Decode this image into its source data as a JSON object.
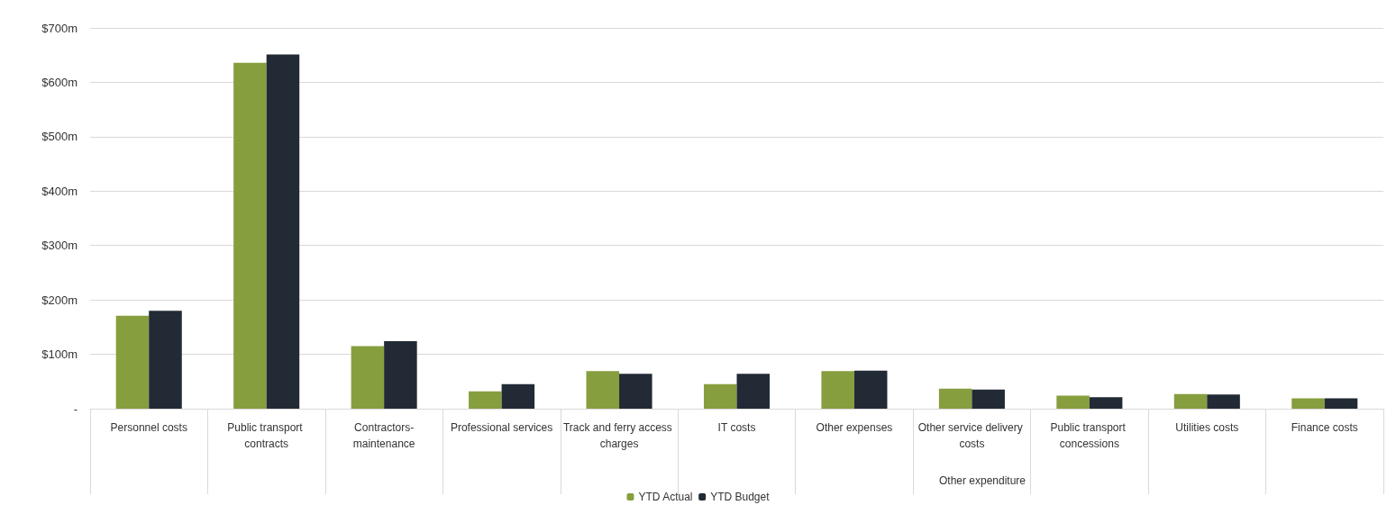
{
  "chart_data": {
    "type": "bar",
    "categories": [
      "Personnel costs",
      "Public transport contracts",
      "Contractors-maintenance",
      "Professional services",
      "Track and ferry access charges",
      "IT costs",
      "Other expenses",
      "Other service delivery costs",
      "Public transport concessions",
      "Utilities costs",
      "Finance costs"
    ],
    "series": [
      {
        "name": "YTD Actual",
        "color": "#879e3e",
        "values": [
          171,
          636,
          115,
          32,
          69,
          45,
          69,
          37,
          24,
          27,
          19
        ]
      },
      {
        "name": "YTD Budget",
        "color": "#222a35",
        "values": [
          180,
          651,
          124,
          45,
          64,
          64,
          70,
          35,
          21,
          26,
          19
        ]
      }
    ],
    "ylim": [
      0,
      700
    ],
    "yticks": [
      {
        "value": 0,
        "label": "-"
      },
      {
        "value": 100,
        "label": "$100m"
      },
      {
        "value": 200,
        "label": "$200m"
      },
      {
        "value": 300,
        "label": "$300m"
      },
      {
        "value": 400,
        "label": "$400m"
      },
      {
        "value": 500,
        "label": "$500m"
      },
      {
        "value": 600,
        "label": "$600m"
      },
      {
        "value": 700,
        "label": "$700m"
      }
    ],
    "annotations": [
      "Other expenditure"
    ],
    "grid": "y",
    "legend": "bottom"
  }
}
